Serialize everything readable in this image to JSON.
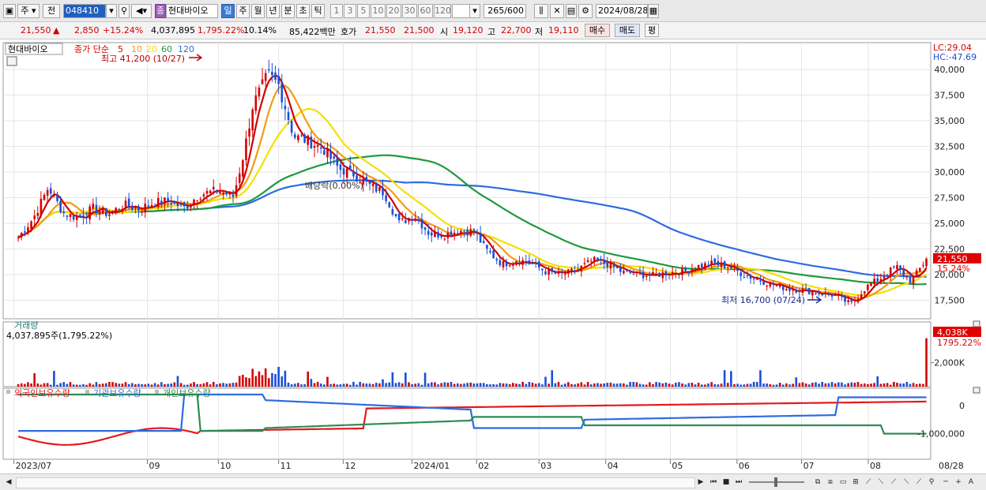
{
  "toolbar": {
    "period_label": "주",
    "prev_label": "전",
    "code": "048410",
    "stock_name": "현대바이오",
    "stock_badge": "종",
    "period_tabs": [
      "일",
      "주",
      "월",
      "년",
      "분",
      "초",
      "틱"
    ],
    "active_tab": "일",
    "numbers": [
      "1",
      "3",
      "5",
      "10",
      "20",
      "30",
      "60",
      "120"
    ],
    "count_value": "265",
    "count_total": "/600",
    "date": "2024/08/28"
  },
  "quote": {
    "price": "21,550",
    "change": "2,850",
    "change_pct": "+15.24%",
    "volume": "4,037,895",
    "volume_pct": "1,795.22%",
    "turnover": "10.14%",
    "amount": "85,422백만",
    "hoga_label": "호가",
    "ask": "21,550",
    "bid": "21,500",
    "open_label": "시",
    "open": "19,120",
    "high_label": "고",
    "high": "22,700",
    "low_label": "저",
    "low": "19,110",
    "buy_label": "매수",
    "sell_label": "매도",
    "eval_label": "평"
  },
  "colors": {
    "up": "#d40000",
    "down": "#1a4fd6",
    "ma5": "#d40000",
    "ma10": "#f39c12",
    "ma20": "#f5e000",
    "ma60": "#1e9a3c",
    "ma120": "#2d6cdf",
    "foreign": "#e41a1c",
    "institution": "#2d6cdf",
    "individual": "#2e8b57"
  },
  "chart_data": [
    {
      "type": "candlestick",
      "legend_stock": "현대바이오",
      "legend": {
        "label": "종가 단순",
        "ma": [
          "5",
          "10",
          "20",
          "60",
          "120"
        ]
      },
      "lc": "LC:29.04",
      "hc": "HC:-47.69",
      "y_ticks": [
        "40,000",
        "37,500",
        "35,000",
        "32,500",
        "30,000",
        "27,500",
        "25,000",
        "22,500",
        "20,000",
        "17,500"
      ],
      "ylim": [
        16000,
        42000
      ],
      "x_ticks": [
        "2023/07",
        "09",
        "10",
        "11",
        "12",
        "2024/01",
        "02",
        "03",
        "04",
        "05",
        "06",
        "07",
        "08"
      ],
      "x_last": "08/28",
      "current_price_label": "21,550",
      "current_pct_label": "15.24%",
      "annotations": {
        "high": "최고 41,200 (10/27)",
        "low": "최저 16,700 (07/24)",
        "dividend": "배당락(0.00%)"
      },
      "price_path": [
        [
          "2023-07-03",
          23600
        ],
        [
          "2023-07-10",
          25500
        ],
        [
          "2023-07-17",
          28500
        ],
        [
          "2023-07-24",
          26000
        ],
        [
          "2023-07-31",
          25500
        ],
        [
          "2023-08-07",
          26500
        ],
        [
          "2023-08-14",
          25900
        ],
        [
          "2023-08-21",
          26800
        ],
        [
          "2023-08-28",
          26400
        ],
        [
          "2023-09-04",
          27000
        ],
        [
          "2023-09-11",
          27200
        ],
        [
          "2023-09-18",
          26500
        ],
        [
          "2023-09-25",
          27800
        ],
        [
          "2023-10-04",
          28200
        ],
        [
          "2023-10-11",
          27600
        ],
        [
          "2023-10-16",
          32000
        ],
        [
          "2023-10-20",
          36500
        ],
        [
          "2023-10-27",
          39500
        ],
        [
          "2023-11-01",
          38500
        ],
        [
          "2023-11-08",
          33500
        ],
        [
          "2023-11-15",
          33000
        ],
        [
          "2023-11-22",
          32200
        ],
        [
          "2023-11-29",
          30300
        ],
        [
          "2023-12-06",
          29800
        ],
        [
          "2023-12-13",
          28700
        ],
        [
          "2023-12-20",
          28000
        ],
        [
          "2023-12-27",
          25000
        ],
        [
          "2024-01-03",
          25800
        ],
        [
          "2024-01-10",
          24000
        ],
        [
          "2024-01-17",
          23900
        ],
        [
          "2024-01-24",
          24300
        ],
        [
          "2024-01-31",
          24200
        ],
        [
          "2024-02-05",
          22500
        ],
        [
          "2024-02-13",
          21000
        ],
        [
          "2024-02-20",
          21500
        ],
        [
          "2024-02-27",
          21000
        ],
        [
          "2024-03-05",
          20200
        ],
        [
          "2024-03-12",
          20000
        ],
        [
          "2024-03-19",
          20500
        ],
        [
          "2024-03-26",
          21400
        ],
        [
          "2024-04-02",
          21000
        ],
        [
          "2024-04-09",
          20200
        ],
        [
          "2024-04-16",
          20000
        ],
        [
          "2024-04-23",
          19900
        ],
        [
          "2024-04-30",
          20200
        ],
        [
          "2024-05-07",
          20300
        ],
        [
          "2024-05-14",
          20800
        ],
        [
          "2024-05-21",
          21100
        ],
        [
          "2024-05-28",
          20800
        ],
        [
          "2024-06-04",
          20000
        ],
        [
          "2024-06-11",
          19500
        ],
        [
          "2024-06-18",
          19000
        ],
        [
          "2024-06-25",
          18600
        ],
        [
          "2024-07-02",
          18500
        ],
        [
          "2024-07-09",
          18200
        ],
        [
          "2024-07-16",
          18000
        ],
        [
          "2024-07-24",
          17100
        ],
        [
          "2024-07-31",
          18800
        ],
        [
          "2024-08-07",
          19700
        ],
        [
          "2024-08-14",
          20800
        ],
        [
          "2024-08-21",
          19300
        ],
        [
          "2024-08-28",
          21550
        ]
      ]
    },
    {
      "type": "bar",
      "title": "거래량",
      "value_label": "4,037,895주(1,795.22%)",
      "current_label": "4,038K",
      "current_pct": "1795.22%",
      "y_ticks": [
        "2,000K"
      ],
      "ylim": [
        0,
        5000000
      ]
    },
    {
      "type": "line",
      "series": [
        {
          "name": "외국인보유수량"
        },
        {
          "name": "기관보유수량"
        },
        {
          "name": "개인보유수량"
        }
      ],
      "y_ticks": [
        "0",
        "-1,000,000"
      ]
    }
  ],
  "scrollbar": {
    "buttons": [
      "◀",
      "▶",
      "⏮",
      "■",
      "⏭",
      "─",
      "+",
      "A"
    ]
  }
}
